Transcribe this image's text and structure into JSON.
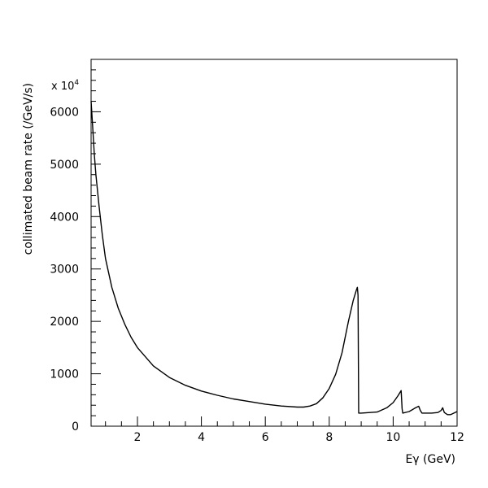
{
  "chart_data": {
    "type": "line",
    "title": "",
    "xlabel": "Eγ (GeV)",
    "ylabel": "collimated beam rate (/GeV/s)",
    "y_scale_label": "x 10",
    "y_scale_exponent": "4",
    "xlim": [
      0.55,
      12
    ],
    "ylim": [
      0,
      7000
    ],
    "x_ticks": [
      2,
      4,
      6,
      8,
      10,
      12
    ],
    "x_tick_labels": [
      "2",
      "4",
      "6",
      "8",
      "10",
      "12"
    ],
    "y_ticks": [
      0,
      1000,
      2000,
      3000,
      4000,
      5000,
      6000
    ],
    "y_tick_labels": [
      "0",
      "1000",
      "2000",
      "3000",
      "4000",
      "5000",
      "6000"
    ],
    "grid": false,
    "legend": "none",
    "series": [
      {
        "x": [
          0.55,
          0.6,
          0.65,
          0.7,
          0.8,
          0.9,
          1.0,
          1.2,
          1.4,
          1.6,
          1.8,
          2.0,
          2.5,
          3.0,
          3.5,
          4.0,
          4.5,
          5.0,
          5.5,
          6.0,
          6.5,
          7.0,
          7.2,
          7.4,
          7.6,
          7.8,
          8.0,
          8.2,
          8.4,
          8.6,
          8.75,
          8.85,
          8.88,
          8.9,
          8.92,
          9.0,
          9.5,
          9.8,
          10.0,
          10.15,
          10.25,
          10.28,
          10.3,
          10.5,
          10.7,
          10.8,
          10.85,
          10.9,
          11.0,
          11.2,
          11.4,
          11.5,
          11.55,
          11.6,
          11.7,
          11.8,
          12.0
        ],
        "y": [
          6200,
          5700,
          5200,
          4800,
          4200,
          3650,
          3200,
          2650,
          2250,
          1950,
          1700,
          1500,
          1150,
          930,
          780,
          670,
          590,
          520,
          470,
          420,
          385,
          365,
          365,
          385,
          430,
          540,
          720,
          990,
          1400,
          2000,
          2400,
          2600,
          2650,
          2500,
          250,
          250,
          270,
          350,
          450,
          580,
          680,
          330,
          250,
          280,
          350,
          380,
          300,
          250,
          250,
          250,
          260,
          300,
          350,
          260,
          220,
          220,
          280
        ]
      }
    ]
  }
}
